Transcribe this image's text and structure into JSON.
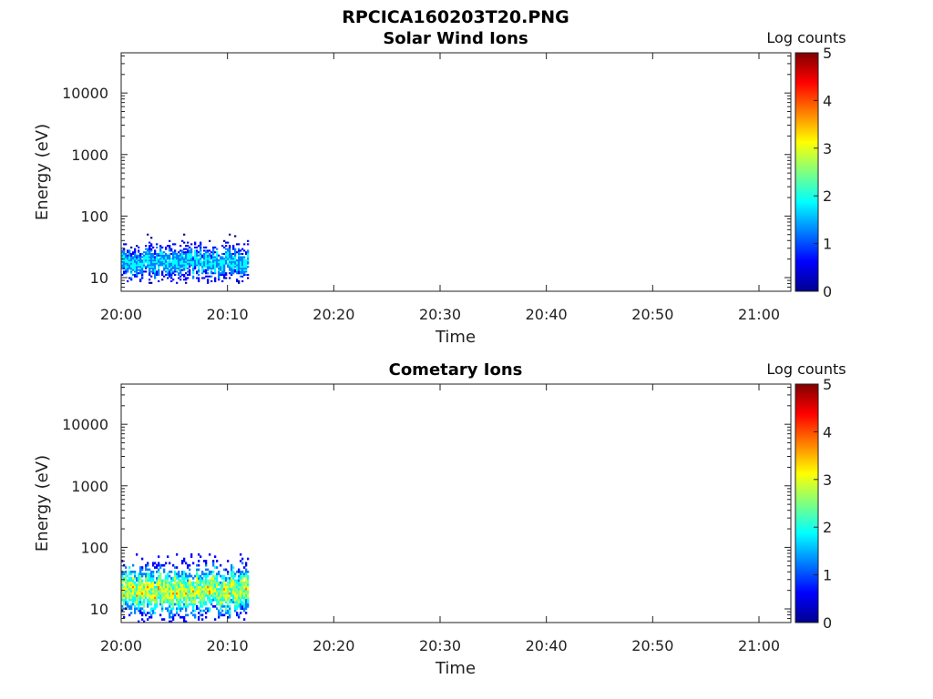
{
  "figure_title": "RPCICA160203T20.PNG",
  "colormap": [
    "#00008f",
    "#0000ff",
    "#0080ff",
    "#00ffff",
    "#80ff80",
    "#ffff00",
    "#ff8000",
    "#ff0000",
    "#800000"
  ],
  "chart_data": [
    {
      "type": "heatmap",
      "title": "Solar Wind Ions",
      "xlabel": "Time",
      "ylabel": "Energy (eV)",
      "yscale": "log",
      "x_ticks": [
        "20:00",
        "20:10",
        "20:20",
        "20:30",
        "20:40",
        "20:50",
        "21:00"
      ],
      "y_ticks": [
        "10",
        "100",
        "1000",
        "10000"
      ],
      "xlim": [
        "20:00",
        "21:03"
      ],
      "ylim": [
        6,
        45000
      ],
      "colorbar": {
        "label": "Log counts",
        "min": 0,
        "max": 5,
        "ticks": [
          "0",
          "1",
          "2",
          "3",
          "4",
          "5"
        ]
      },
      "data": {
        "time_range": [
          "20:00",
          "20:12"
        ],
        "energy_range": [
          8,
          55
        ],
        "core_energy": 18,
        "level_range": [
          0.2,
          2.0
        ]
      }
    },
    {
      "type": "heatmap",
      "title": "Cometary Ions",
      "xlabel": "Time",
      "ylabel": "Energy (eV)",
      "yscale": "log",
      "x_ticks": [
        "20:00",
        "20:10",
        "20:20",
        "20:30",
        "20:40",
        "20:50",
        "21:00"
      ],
      "y_ticks": [
        "10",
        "100",
        "1000",
        "10000"
      ],
      "xlim": [
        "20:00",
        "21:03"
      ],
      "ylim": [
        6,
        45000
      ],
      "colorbar": {
        "label": "Log counts",
        "min": 0,
        "max": 5,
        "ticks": [
          "0",
          "1",
          "2",
          "3",
          "4",
          "5"
        ]
      },
      "data": {
        "time_range": [
          "20:00",
          "20:12"
        ],
        "energy_range": [
          6,
          80
        ],
        "core_energy": 20,
        "level_range": [
          0.3,
          3.3
        ]
      }
    }
  ]
}
